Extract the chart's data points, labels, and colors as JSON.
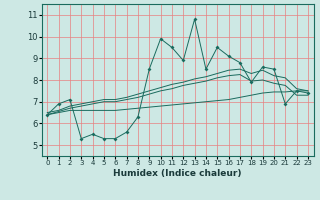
{
  "xlabel": "Humidex (Indice chaleur)",
  "ylabel": "",
  "bg_color": "#cde8e4",
  "grid_color": "#e88080",
  "line_color": "#1a6b5e",
  "xlim": [
    -0.5,
    23.5
  ],
  "ylim": [
    4.5,
    11.5
  ],
  "xticks": [
    0,
    1,
    2,
    3,
    4,
    5,
    6,
    7,
    8,
    9,
    10,
    11,
    12,
    13,
    14,
    15,
    16,
    17,
    18,
    19,
    20,
    21,
    22,
    23
  ],
  "yticks": [
    5,
    6,
    7,
    8,
    9,
    10,
    11
  ],
  "series1_x": [
    0,
    1,
    2,
    3,
    4,
    5,
    6,
    7,
    8,
    9,
    10,
    11,
    12,
    13,
    14,
    15,
    16,
    17,
    18,
    19,
    20,
    21,
    22,
    23
  ],
  "series1_y": [
    6.4,
    6.9,
    7.1,
    5.3,
    5.5,
    5.3,
    5.3,
    5.6,
    6.3,
    8.5,
    9.9,
    9.5,
    8.9,
    10.8,
    8.5,
    9.5,
    9.1,
    8.8,
    7.9,
    8.6,
    8.5,
    6.9,
    7.5,
    7.4
  ],
  "series2_x": [
    0,
    1,
    2,
    3,
    4,
    5,
    6,
    7,
    8,
    9,
    10,
    11,
    12,
    13,
    14,
    15,
    16,
    17,
    18,
    19,
    20,
    21,
    22,
    23
  ],
  "series2_y": [
    6.5,
    6.6,
    6.8,
    6.9,
    7.0,
    7.1,
    7.1,
    7.2,
    7.35,
    7.5,
    7.65,
    7.8,
    7.9,
    8.05,
    8.15,
    8.3,
    8.45,
    8.5,
    8.3,
    8.45,
    8.2,
    8.1,
    7.6,
    7.5
  ],
  "series3_x": [
    0,
    1,
    2,
    3,
    4,
    5,
    6,
    7,
    8,
    9,
    10,
    11,
    12,
    13,
    14,
    15,
    16,
    17,
    18,
    19,
    20,
    21,
    22,
    23
  ],
  "series3_y": [
    6.4,
    6.55,
    6.7,
    6.8,
    6.9,
    7.0,
    7.0,
    7.1,
    7.2,
    7.35,
    7.5,
    7.6,
    7.75,
    7.85,
    7.95,
    8.1,
    8.2,
    8.25,
    7.95,
    8.0,
    7.85,
    7.75,
    7.3,
    7.3
  ],
  "series4_x": [
    0,
    1,
    2,
    3,
    4,
    5,
    6,
    7,
    8,
    9,
    10,
    11,
    12,
    13,
    14,
    15,
    16,
    17,
    18,
    19,
    20,
    21,
    22,
    23
  ],
  "series4_y": [
    6.4,
    6.5,
    6.6,
    6.6,
    6.6,
    6.6,
    6.6,
    6.65,
    6.7,
    6.75,
    6.8,
    6.85,
    6.9,
    6.95,
    7.0,
    7.05,
    7.1,
    7.2,
    7.3,
    7.4,
    7.45,
    7.45,
    7.5,
    7.5
  ]
}
